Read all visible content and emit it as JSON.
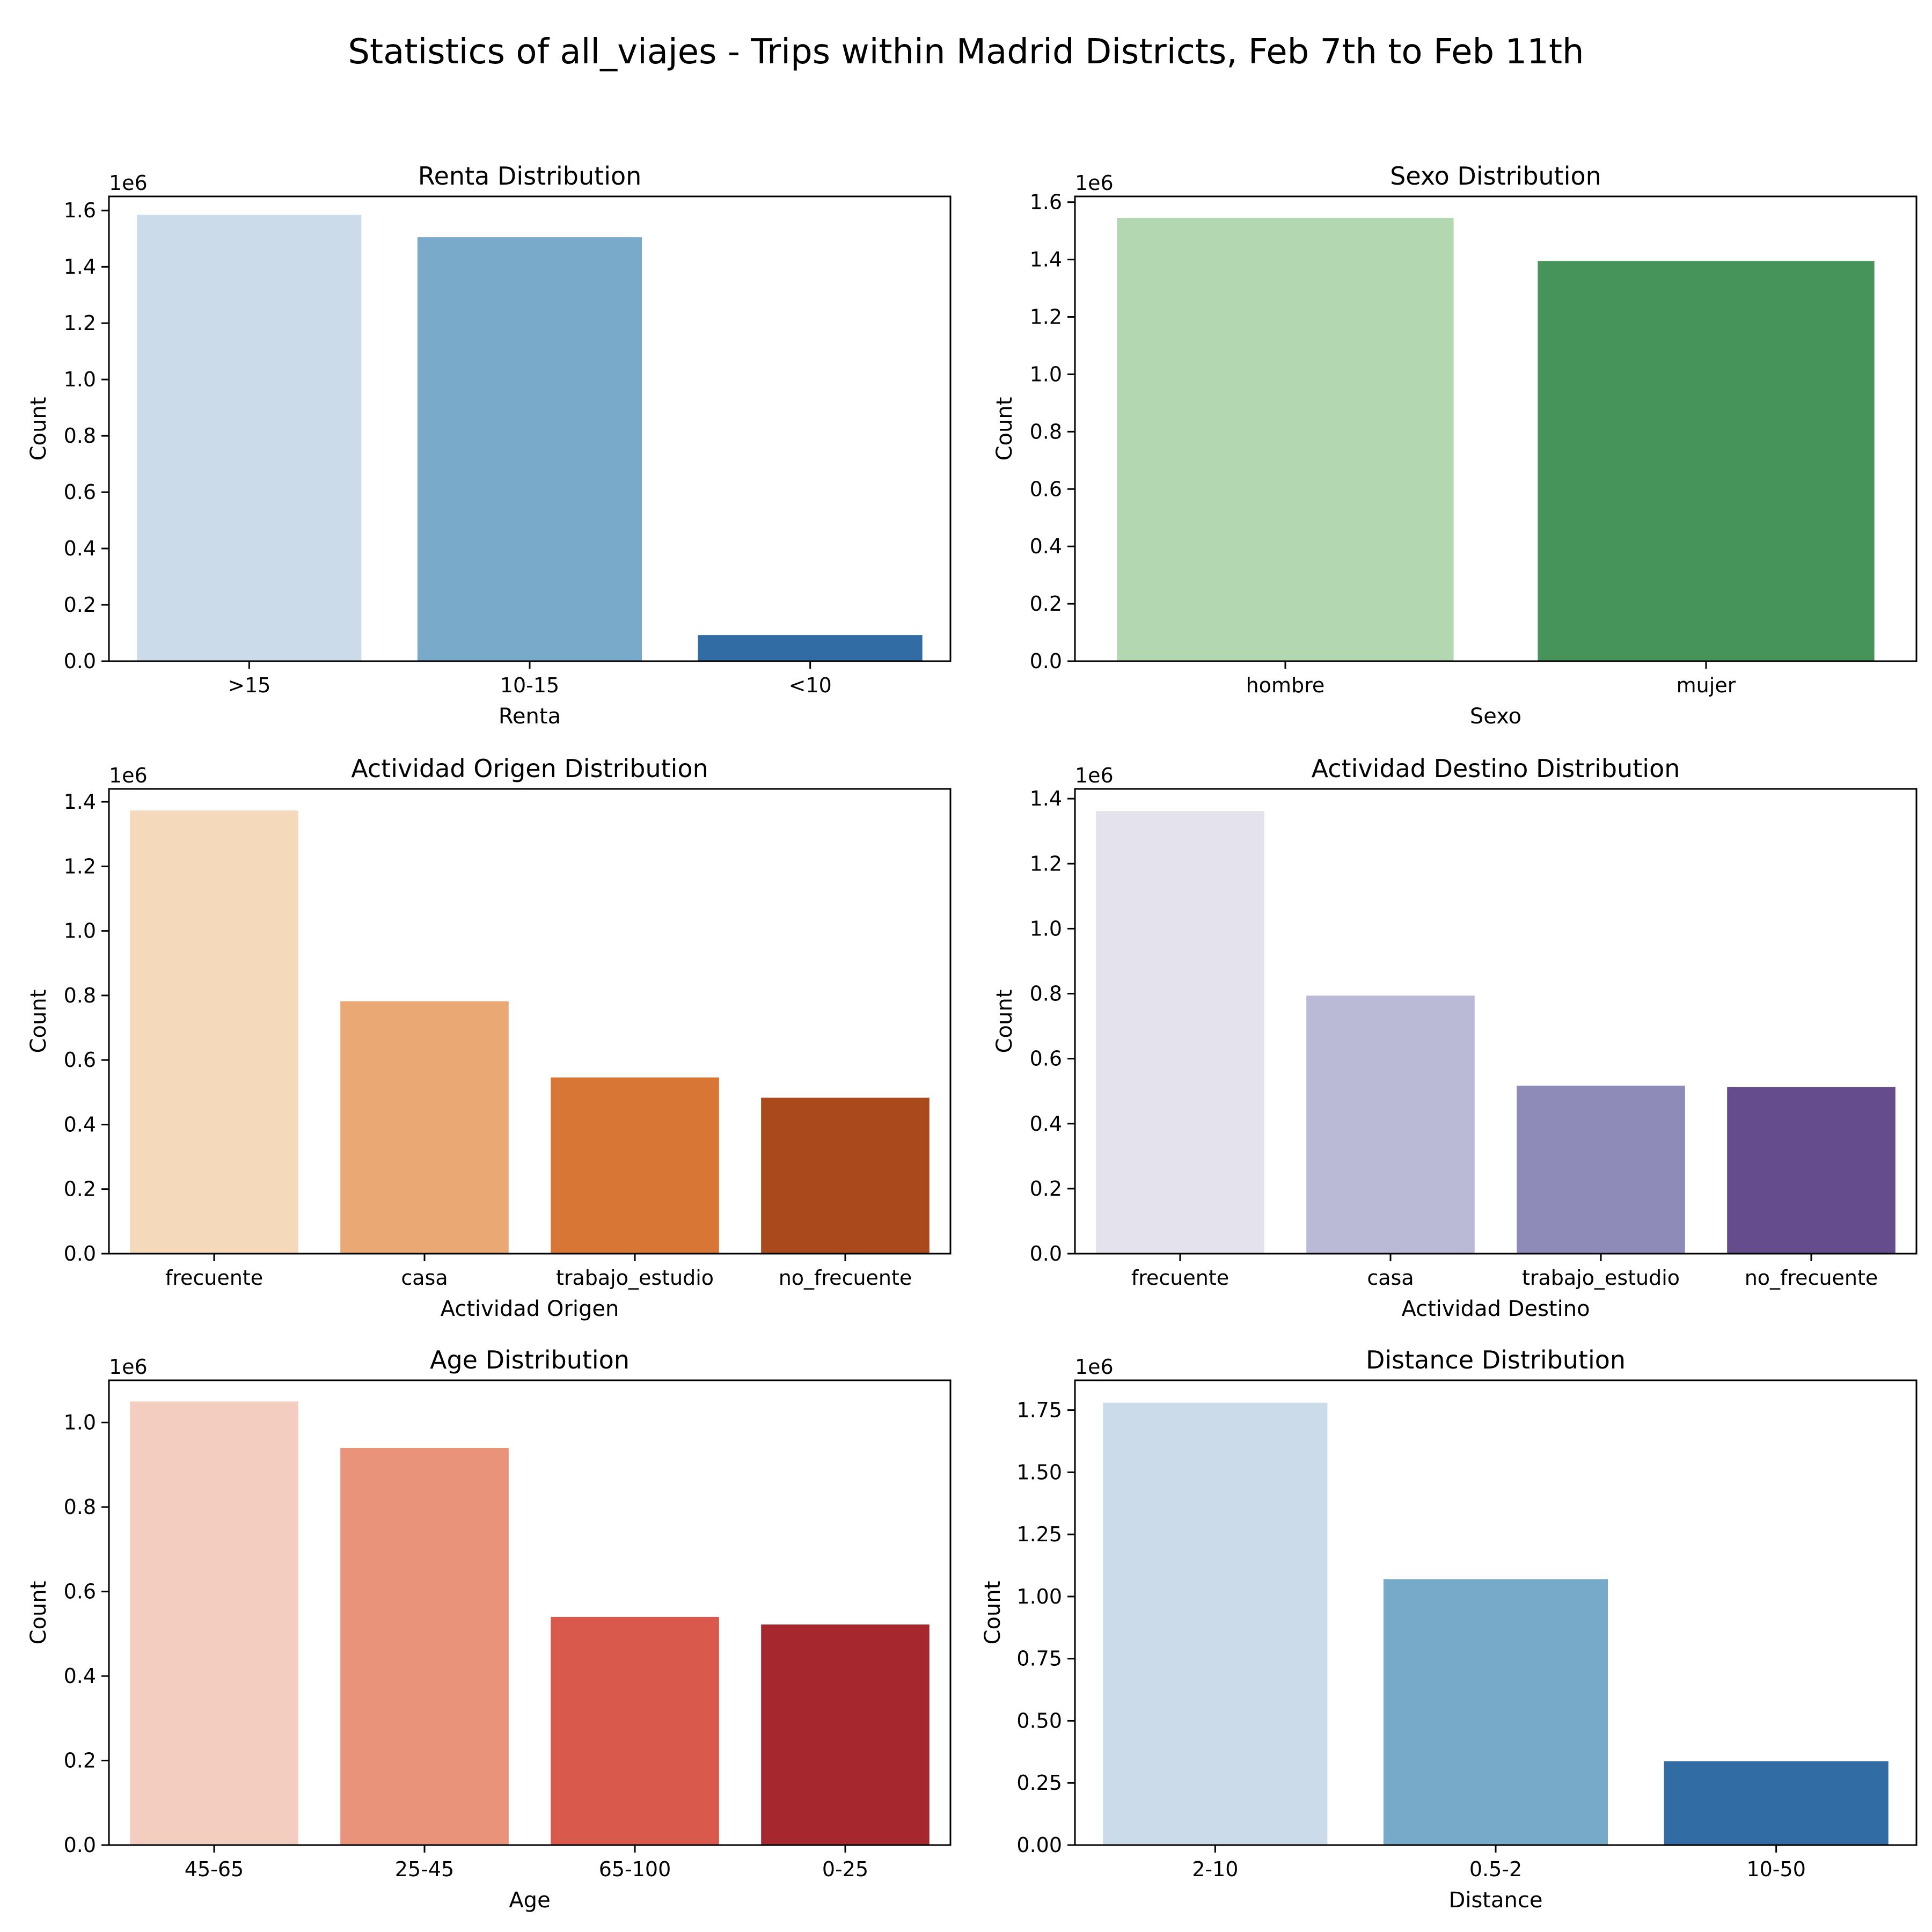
{
  "figure": {
    "title": "Statistics of all_viajes - Trips within Madrid Districts, Feb 7th to Feb 11th"
  },
  "chart_data": [
    {
      "type": "bar",
      "title": "Renta Distribution",
      "xlabel": "Renta",
      "ylabel": "Count",
      "categories": [
        ">15",
        "10-15",
        "<10"
      ],
      "values": [
        1585000,
        1505000,
        93000
      ],
      "colors": [
        "#cbdbea",
        "#7aaac9",
        "#316ca4"
      ],
      "ylim": [
        0,
        1650000
      ],
      "yticks": [
        0,
        200000,
        400000,
        600000,
        800000,
        1000000,
        1200000,
        1400000,
        1600000
      ],
      "ytick_labels": [
        "0.0",
        "0.2",
        "0.4",
        "0.6",
        "0.8",
        "1.0",
        "1.2",
        "1.4",
        "1.6"
      ],
      "offset_text": "1e6",
      "grid": false
    },
    {
      "type": "bar",
      "title": "Sexo Distribution",
      "xlabel": "Sexo",
      "ylabel": "Count",
      "categories": [
        "hombre",
        "mujer"
      ],
      "values": [
        1545000,
        1395000
      ],
      "colors": [
        "#b3d7b0",
        "#469459"
      ],
      "ylim": [
        0,
        1620000
      ],
      "yticks": [
        0,
        200000,
        400000,
        600000,
        800000,
        1000000,
        1200000,
        1400000,
        1600000
      ],
      "ytick_labels": [
        "0.0",
        "0.2",
        "0.4",
        "0.6",
        "0.8",
        "1.0",
        "1.2",
        "1.4",
        "1.6"
      ],
      "offset_text": "1e6",
      "grid": false
    },
    {
      "type": "bar",
      "title": "Actividad Origen Distribution",
      "xlabel": "Actividad Origen",
      "ylabel": "Count",
      "categories": [
        "frecuente",
        "casa",
        "trabajo_estudio",
        "no_frecuente"
      ],
      "values": [
        1373000,
        782000,
        546000,
        483000
      ],
      "colors": [
        "#f4d9ba",
        "#eaa974",
        "#d77635",
        "#aa4a1c"
      ],
      "ylim": [
        0,
        1440000
      ],
      "yticks": [
        0,
        200000,
        400000,
        600000,
        800000,
        1000000,
        1200000,
        1400000
      ],
      "ytick_labels": [
        "0.0",
        "0.2",
        "0.4",
        "0.6",
        "0.8",
        "1.0",
        "1.2",
        "1.4"
      ],
      "offset_text": "1e6",
      "grid": false
    },
    {
      "type": "bar",
      "title": "Actividad Destino Distribution",
      "xlabel": "Actividad Destino",
      "ylabel": "Count",
      "categories": [
        "frecuente",
        "casa",
        "trabajo_estudio",
        "no_frecuente"
      ],
      "values": [
        1362000,
        794000,
        517000,
        513000
      ],
      "colors": [
        "#e3e2ed",
        "#bbbad6",
        "#8e8bb8",
        "#654d8d"
      ],
      "ylim": [
        0,
        1430000
      ],
      "yticks": [
        0,
        200000,
        400000,
        600000,
        800000,
        1000000,
        1200000,
        1400000
      ],
      "ytick_labels": [
        "0.0",
        "0.2",
        "0.4",
        "0.6",
        "0.8",
        "1.0",
        "1.2",
        "1.4"
      ],
      "offset_text": "1e6",
      "grid": false
    },
    {
      "type": "bar",
      "title": "Age Distribution",
      "xlabel": "Age",
      "ylabel": "Count",
      "categories": [
        "45-65",
        "25-45",
        "65-100",
        "0-25"
      ],
      "values": [
        1050000,
        940000,
        540000,
        522000
      ],
      "colors": [
        "#f3cdc0",
        "#e8937a",
        "#da594d",
        "#a6282e"
      ],
      "ylim": [
        0,
        1100000
      ],
      "yticks": [
        0,
        200000,
        400000,
        600000,
        800000,
        1000000
      ],
      "ytick_labels": [
        "0.0",
        "0.2",
        "0.4",
        "0.6",
        "0.8",
        "1.0"
      ],
      "offset_text": "1e6",
      "grid": false
    },
    {
      "type": "bar",
      "title": "Distance Distribution",
      "xlabel": "Distance",
      "ylabel": "Count",
      "categories": [
        "2-10",
        "0.5-2",
        "10-50"
      ],
      "values": [
        1780000,
        1070000,
        337000
      ],
      "colors": [
        "#cbdbea",
        "#77a9c9",
        "#316ca4"
      ],
      "ylim": [
        0,
        1870000
      ],
      "yticks": [
        0,
        250000,
        500000,
        750000,
        1000000,
        1250000,
        1500000,
        1750000
      ],
      "ytick_labels": [
        "0.00",
        "0.25",
        "0.50",
        "0.75",
        "1.00",
        "1.25",
        "1.50",
        "1.75"
      ],
      "offset_text": "1e6",
      "grid": false
    }
  ]
}
